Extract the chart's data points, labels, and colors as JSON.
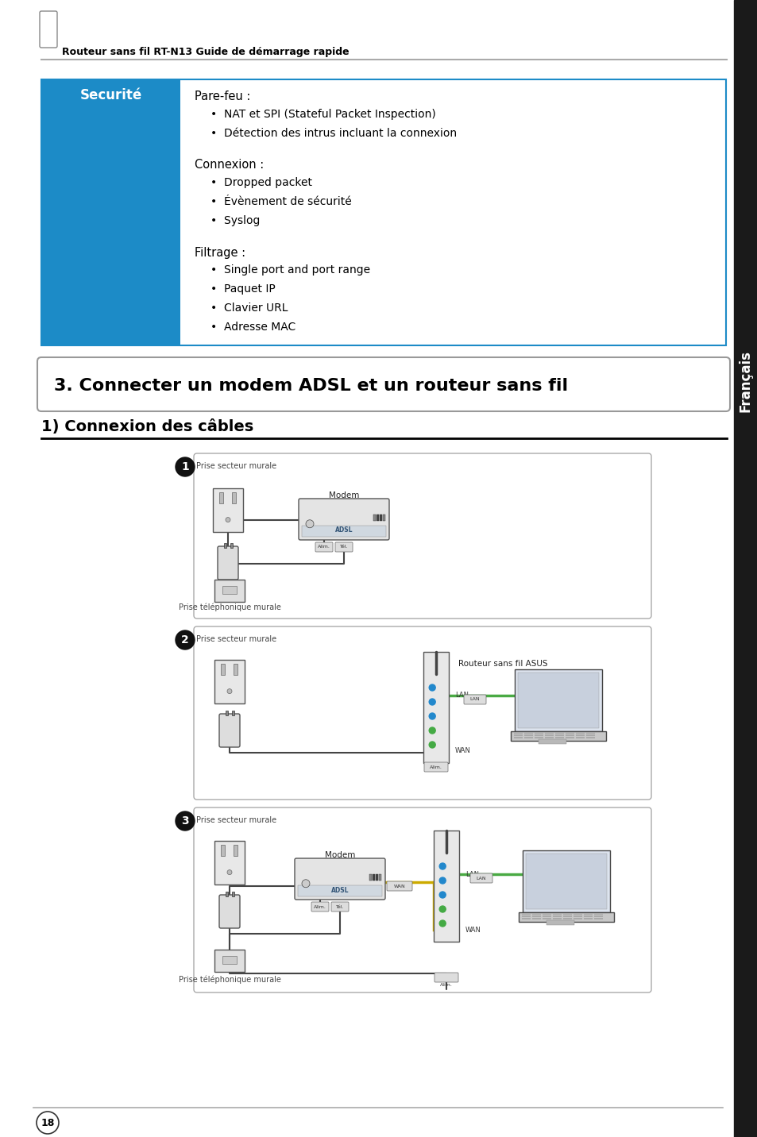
{
  "page_bg": "#ffffff",
  "header_text": "Routeur sans fil RT-N13 Guide de démarrage rapide",
  "sidebar_color": "#1a1a1a",
  "sidebar_text": "Français",
  "table_border_color": "#1c8bc7",
  "table_header_bg": "#1c8bc7",
  "table_header_text": "Securité",
  "table_header_text_color": "#ffffff",
  "table_content_bg": "#ffffff",
  "section_title": "3. Connecter un modem ADSL et un routeur sans fil",
  "subsection_title": "1) Connexion des câbles",
  "page_number": "18",
  "parefeu_title": "Pare-feu :",
  "parefeu_items": [
    "NAT et SPI (Stateful Packet Inspection)",
    "Détection des intrus incluant la connexion"
  ],
  "connexion_title": "Connexion :",
  "connexion_items": [
    "Dropped packet",
    "Évènement de sécurité",
    "Syslog"
  ],
  "filtrage_title": "Filtrage :",
  "filtrage_items": [
    "Single port and port range",
    "Paquet IP",
    "Clavier URL",
    "Adresse MAC"
  ],
  "step1_label": "Prise secteur murale",
  "step1_modem_label": "Modem",
  "step1_phone_label": "Prise téléphonique murale",
  "step2_label": "Prise secteur murale",
  "step2_router_label": "Routeur sans fil ASUS",
  "step3_label": "Prise secteur murale",
  "step3_modem_label": "Modem",
  "step3_phone_label": "Prise téléphonique murale",
  "green_cable": "#4aaa44",
  "yellow_cable": "#ccaa00",
  "dark_cable": "#444444",
  "diagram_bg": "#f0f0f0",
  "diagram_border": "#aaaaaa"
}
